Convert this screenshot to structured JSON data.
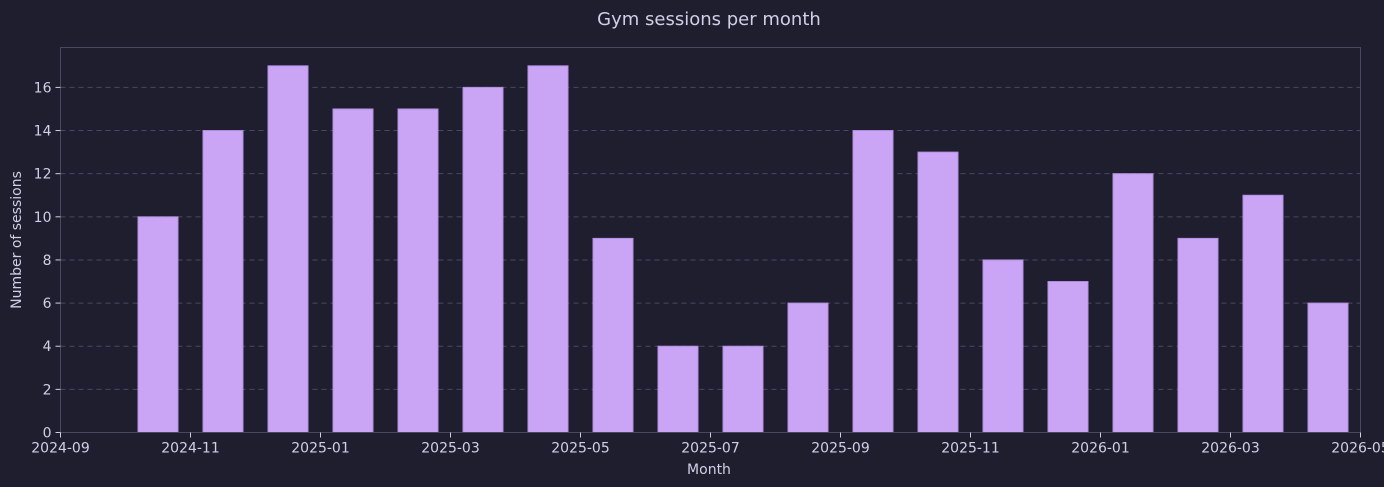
{
  "chart_data": {
    "type": "bar",
    "title": "Gym sessions per month",
    "xlabel": "Month",
    "ylabel": "Number of sessions",
    "x": [
      "2024-10",
      "2024-11",
      "2024-12",
      "2025-01",
      "2025-02",
      "2025-03",
      "2025-04",
      "2025-05",
      "2025-06",
      "2025-07",
      "2025-08",
      "2025-09",
      "2025-10",
      "2025-11",
      "2025-12",
      "2026-01",
      "2026-02",
      "2026-03",
      "2026-04"
    ],
    "values": [
      10,
      14,
      17,
      15,
      15,
      16,
      17,
      9,
      4,
      4,
      6,
      14,
      13,
      8,
      7,
      12,
      9,
      11,
      6
    ],
    "xlim": [
      "2024-09",
      "2026-05"
    ],
    "ylim": [
      0,
      17.85
    ],
    "yticks": [
      0,
      2,
      4,
      6,
      8,
      10,
      12,
      14,
      16
    ],
    "xticks": [
      "2024-09",
      "2024-11",
      "2025-01",
      "2025-03",
      "2025-05",
      "2025-07",
      "2025-09",
      "2025-11",
      "2026-01",
      "2026-03",
      "2026-05"
    ],
    "grid": true,
    "colors": {
      "background": "#1f1e2e",
      "bar_fill": "#caa5f5",
      "bar_edge": "#b28fe0",
      "grid": "#4a4860",
      "text": "#cfd0e6"
    }
  }
}
